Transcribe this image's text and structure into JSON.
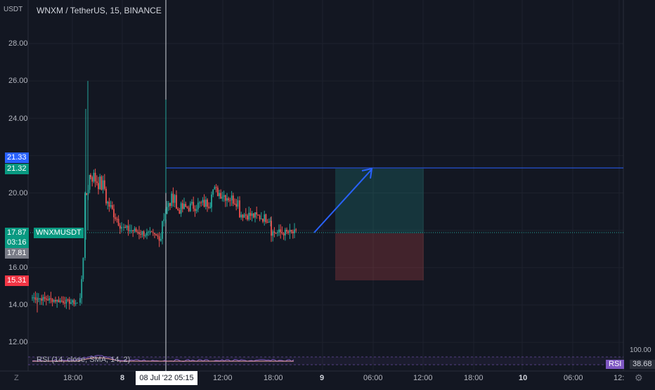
{
  "header": {
    "title": "WNXM / TetherUS, 15, BINANCE",
    "currency": "USDT"
  },
  "price_axis": {
    "ticks": [
      "28.00",
      "26.00",
      "24.00",
      "22.00",
      "20.00",
      "18.00",
      "16.00",
      "14.00",
      "12.00"
    ],
    "tags": {
      "target_top": "21.33",
      "target_top2": "21.32",
      "symbol": "WNXMUSDT",
      "last_price": "17.87",
      "countdown": "03:16",
      "entry": "17.81",
      "stop": "15.31"
    }
  },
  "time_axis": {
    "ticks": [
      "18:00",
      "8",
      "12:00",
      "18:00",
      "9",
      "06:00",
      "12:00",
      "18:00",
      "10",
      "06:00",
      "12:"
    ],
    "cursor_label": "08 Jul '22   05:15"
  },
  "rsi": {
    "label": "RSI (14, close, SMA, 14, 2)",
    "badge": "RSI",
    "value": "38.68",
    "upper": "100.00"
  },
  "controls": {
    "left_icon": "Z",
    "right_icon": "⚙"
  },
  "colors": {
    "up": "#26a69a",
    "down": "#ef5350",
    "bg": "#131722",
    "line_blue": "#2962ff",
    "rsi_line": "#7e57c2"
  },
  "chart_data": {
    "type": "candlestick",
    "symbol": "WNXMUSDT",
    "interval": "15",
    "ylim": [
      11.5,
      29.5
    ],
    "levels": {
      "target": 21.33,
      "entry": 17.81,
      "stop": 15.31
    },
    "series_summary": [
      {
        "t": "pre",
        "price": 14.0
      },
      {
        "t": "spike",
        "price": 26.0
      },
      {
        "t": "08 Jul",
        "price": 20.5
      },
      {
        "t": "last",
        "price": 17.87
      }
    ]
  }
}
